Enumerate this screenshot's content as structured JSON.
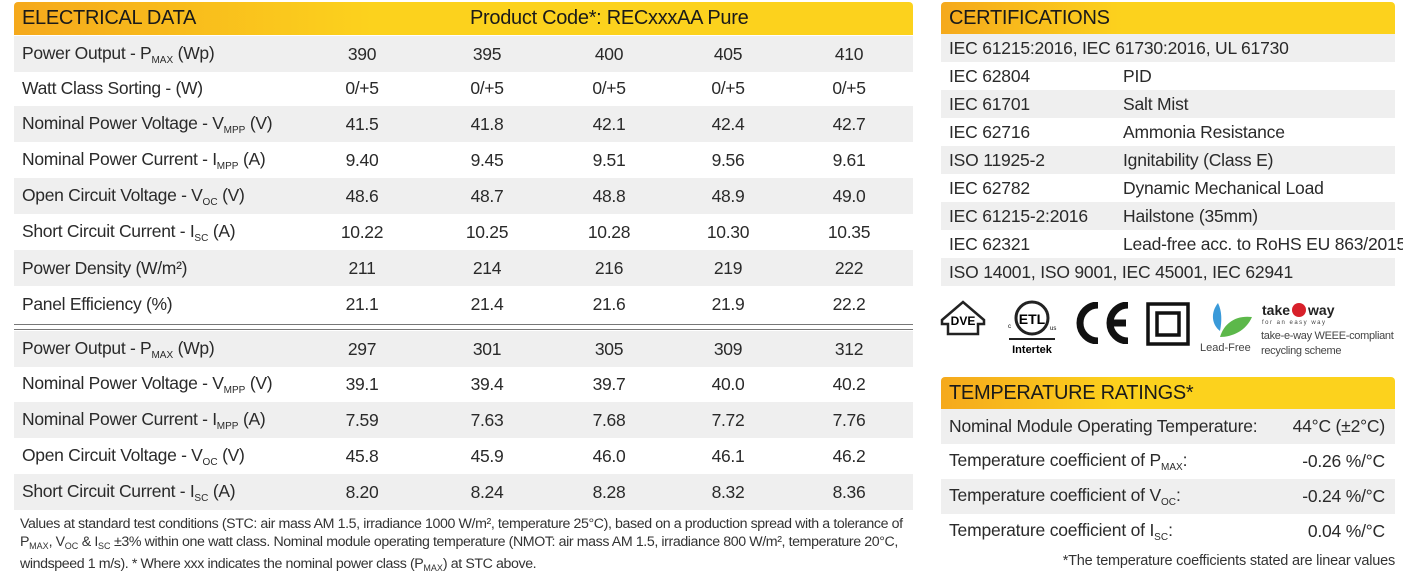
{
  "electrical": {
    "title": "ELECTRICAL DATA",
    "product_code": "Product Code*: RECxxxAA Pure",
    "stc_rows": [
      {
        "label": "Power Output - P",
        "sub": "MAX",
        "unit": " (Wp)",
        "values": [
          "390",
          "395",
          "400",
          "405",
          "410"
        ]
      },
      {
        "label": "Watt Class Sorting - (W)",
        "sub": "",
        "unit": "",
        "values": [
          "0/+5",
          "0/+5",
          "0/+5",
          "0/+5",
          "0/+5"
        ]
      },
      {
        "label": "Nominal Power Voltage - V",
        "sub": "MPP",
        "unit": " (V)",
        "values": [
          "41.5",
          "41.8",
          "42.1",
          "42.4",
          "42.7"
        ]
      },
      {
        "label": "Nominal Power Current - I",
        "sub": "MPP",
        "unit": " (A)",
        "values": [
          "9.40",
          "9.45",
          "9.51",
          "9.56",
          "9.61"
        ]
      },
      {
        "label": "Open Circuit Voltage - V",
        "sub": "OC",
        "unit": " (V)",
        "values": [
          "48.6",
          "48.7",
          "48.8",
          "48.9",
          "49.0"
        ]
      },
      {
        "label": "Short Circuit Current - I",
        "sub": "SC",
        "unit": " (A)",
        "values": [
          "10.22",
          "10.25",
          "10.28",
          "10.30",
          "10.35"
        ]
      },
      {
        "label": "Power Density (W/m²)",
        "sub": "",
        "unit": "",
        "values": [
          "211",
          "214",
          "216",
          "219",
          "222"
        ]
      },
      {
        "label": "Panel Efficiency (%)",
        "sub": "",
        "unit": "",
        "values": [
          "21.1",
          "21.4",
          "21.6",
          "21.9",
          "22.2"
        ]
      }
    ],
    "nmot_rows": [
      {
        "label": "Power Output - P",
        "sub": "MAX",
        "unit": " (Wp)",
        "values": [
          "297",
          "301",
          "305",
          "309",
          "312"
        ]
      },
      {
        "label": "Nominal Power Voltage - V",
        "sub": "MPP",
        "unit": " (V)",
        "values": [
          "39.1",
          "39.4",
          "39.7",
          "40.0",
          "40.2"
        ]
      },
      {
        "label": "Nominal Power Current - I",
        "sub": "MPP",
        "unit": " (A)",
        "values": [
          "7.59",
          "7.63",
          "7.68",
          "7.72",
          "7.76"
        ]
      },
      {
        "label": "Open Circuit Voltage - V",
        "sub": "OC",
        "unit": " (V)",
        "values": [
          "45.8",
          "45.9",
          "46.0",
          "46.1",
          "46.2"
        ]
      },
      {
        "label": "Short Circuit Current - I",
        "sub": "SC",
        "unit": " (A)",
        "values": [
          "8.20",
          "8.24",
          "8.28",
          "8.32",
          "8.36"
        ]
      }
    ],
    "footnote": [
      "Values at standard test conditions (STC: air mass AM 1.5, irradiance 1000 W/m², temperature 25°C), based on a production spread with a tolerance of P",
      "MAX",
      ", V",
      "OC",
      " & I",
      "SC",
      " ±3% within one watt class. Nominal module operating temperature (NMOT: air mass AM 1.5, irradiance 800 W/m², temperature 20°C, windspeed 1 m/s). * Where xxx indicates the nominal power class (P",
      "MAX",
      ") at STC above."
    ]
  },
  "certifications": {
    "title": "CERTIFICATIONS",
    "rows": [
      {
        "a": "IEC 61215:2016, IEC 61730:2016, UL 61730",
        "b": ""
      },
      {
        "a": "IEC 62804",
        "b": "PID"
      },
      {
        "a": "IEC 61701",
        "b": "Salt Mist"
      },
      {
        "a": "IEC 62716",
        "b": "Ammonia Resistance"
      },
      {
        "a": "ISO 11925-2",
        "b": "Ignitability (Class E)"
      },
      {
        "a": "IEC 62782",
        "b": "Dynamic Mechanical Load"
      },
      {
        "a": "IEC 61215-2:2016",
        "b": "Hailstone (35mm)"
      },
      {
        "a": "IEC 62321",
        "b": "Lead-free acc. to RoHS EU 863/2015"
      },
      {
        "a": "ISO 14001, ISO 9001, IEC 45001, IEC 62941",
        "b": ""
      }
    ],
    "logos": {
      "vde": "VDE",
      "etl_c": "c",
      "etl_us": "us",
      "intertek": "Intertek",
      "ce": "CE",
      "lead_free": "Lead-Free",
      "takeeway": "take e way",
      "takeeway_tag": "for an easy way",
      "takeeway_text1": "take-e-way WEEE-compliant",
      "takeeway_text2": "recycling scheme"
    }
  },
  "temperature": {
    "title": "TEMPERATURE RATINGS*",
    "rows": [
      {
        "label": "Nominal Module Operating Temperature:",
        "sub": "",
        "colon": "",
        "value": "44°C (±2°C)"
      },
      {
        "label": "Temperature coefficient of P",
        "sub": "MAX",
        "colon": ":",
        "value": "-0.26 %/°C"
      },
      {
        "label": "Temperature coefficient of V",
        "sub": "OC",
        "colon": ":",
        "value": "-0.24 %/°C"
      },
      {
        "label": "Temperature coefficient of I",
        "sub": "SC",
        "colon": ":",
        "value": "0.04 %/°C"
      }
    ],
    "footnote": "*The temperature coefficients stated are linear values"
  },
  "colors": {
    "header_gradient_start": "#f5a91c",
    "header_gradient_end": "#fcd21d",
    "stripe": "#efefef"
  }
}
